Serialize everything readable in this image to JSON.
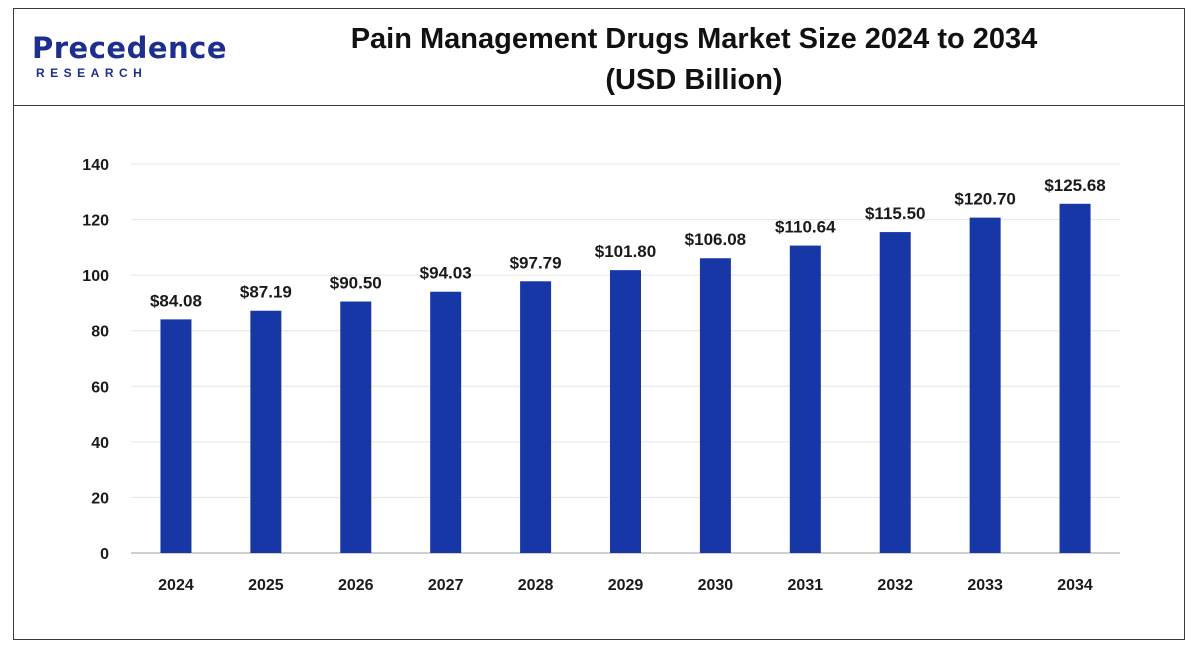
{
  "logo": {
    "word": "Precedence",
    "sub": "RESEARCH"
  },
  "header": {
    "title_line1": "Pain Management Drugs Market Size 2024 to 2034",
    "title_line2": "(USD Billion)"
  },
  "colors": {
    "bar": "#1837a6",
    "grid": "#e6e6e6",
    "axis": "#bfbfbf",
    "brand": "#1c2f8f"
  },
  "chart_data": {
    "type": "bar",
    "title": "Pain Management Drugs Market Size 2024 to 2034 (USD Billion)",
    "xlabel": "",
    "ylabel": "",
    "categories": [
      "2024",
      "2025",
      "2026",
      "2027",
      "2028",
      "2029",
      "2030",
      "2031",
      "2032",
      "2033",
      "2034"
    ],
    "values": [
      84.08,
      87.19,
      90.5,
      94.03,
      97.79,
      101.8,
      106.08,
      110.64,
      115.5,
      120.7,
      125.68
    ],
    "data_labels": [
      "$84.08",
      "$87.19",
      "$90.50",
      "$94.03",
      "$97.79",
      "$101.80",
      "$106.08",
      "$110.64",
      "$115.50",
      "$120.70",
      "$125.68"
    ],
    "ylim": [
      0,
      140
    ],
    "yticks": [
      0,
      20,
      40,
      60,
      80,
      100,
      120,
      140
    ],
    "grid": true,
    "legend": "none"
  }
}
